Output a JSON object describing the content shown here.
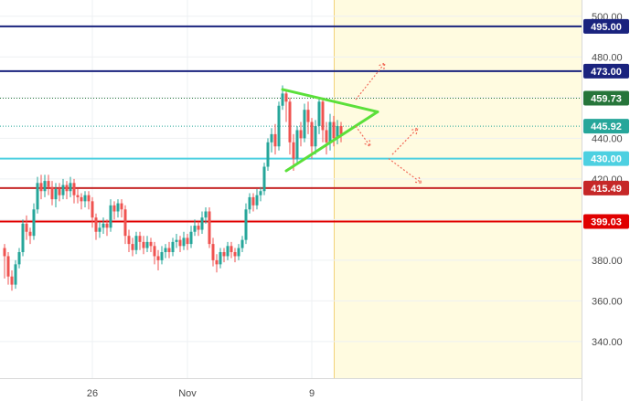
{
  "chart_data": {
    "type": "candlestick",
    "y_axis": {
      "position": "right",
      "range": [
        322,
        508
      ],
      "tick_labels": [
        "340.00",
        "360.00",
        "380.00",
        "420.00",
        "440.00",
        "480.00",
        "500.00"
      ],
      "tick_values": [
        340,
        360,
        380,
        420,
        440,
        480,
        500
      ]
    },
    "x_axis": {
      "tick_labels": [
        "26",
        "Nov",
        "9"
      ],
      "tick_index": [
        24,
        50,
        84
      ]
    },
    "grid": true,
    "forecast_zone_start_index": 90,
    "horizontal_levels": [
      {
        "value": 495.0,
        "label": "495.00",
        "color": "#1a237e",
        "style": "solid"
      },
      {
        "value": 473.0,
        "label": "473.00",
        "color": "#1a237e",
        "style": "solid"
      },
      {
        "value": 459.73,
        "label": "459.73",
        "color": "#26753a",
        "style": "dotted"
      },
      {
        "value": 445.92,
        "label": "445.92",
        "color": "#26a69a",
        "style": "dotted"
      },
      {
        "value": 430.0,
        "label": "430.00",
        "color": "#4dd0e1",
        "style": "solid"
      },
      {
        "value": 415.49,
        "label": "415.49",
        "color": "#c62828",
        "style": "solid"
      },
      {
        "value": 399.03,
        "label": "399.03",
        "color": "#e00000",
        "style": "solid"
      }
    ],
    "triangle": {
      "upper": [
        [
          76,
          464
        ],
        [
          102,
          453
        ]
      ],
      "lower": [
        [
          77,
          424
        ],
        [
          102,
          453
        ]
      ],
      "color": "#5be03a"
    },
    "projection_arrows": [
      {
        "from": [
          96,
          459
        ],
        "to": [
          104,
          477
        ]
      },
      {
        "from": [
          96,
          446
        ],
        "to": [
          100,
          436
        ]
      },
      {
        "from": [
          106,
          432
        ],
        "to": [
          113,
          445
        ]
      },
      {
        "from": [
          105,
          430
        ],
        "to": [
          114,
          418
        ]
      }
    ],
    "candles": [
      [
        386,
        382,
        388,
        371
      ],
      [
        382,
        372,
        384,
        368
      ],
      [
        372,
        368,
        375,
        365
      ],
      [
        368,
        378,
        380,
        366
      ],
      [
        378,
        384,
        386,
        376
      ],
      [
        384,
        398,
        400,
        382
      ],
      [
        398,
        394,
        402,
        390
      ],
      [
        394,
        392,
        396,
        388
      ],
      [
        392,
        405,
        408,
        390
      ],
      [
        405,
        418,
        421,
        403
      ],
      [
        418,
        414,
        422,
        410
      ],
      [
        414,
        419,
        422,
        411
      ],
      [
        419,
        416,
        422,
        412
      ],
      [
        416,
        410,
        419,
        407
      ],
      [
        410,
        415,
        418,
        406
      ],
      [
        415,
        412,
        418,
        409
      ],
      [
        412,
        417,
        420,
        410
      ],
      [
        417,
        414,
        419,
        410
      ],
      [
        414,
        418,
        421,
        411
      ],
      [
        418,
        412,
        420,
        408
      ],
      [
        412,
        411,
        415,
        408
      ],
      [
        411,
        409,
        413,
        405
      ],
      [
        409,
        412,
        414,
        406
      ],
      [
        412,
        409,
        414,
        405
      ],
      [
        409,
        401,
        411,
        396
      ],
      [
        401,
        394,
        403,
        390
      ],
      [
        394,
        396,
        399,
        391
      ],
      [
        396,
        398,
        401,
        393
      ],
      [
        398,
        396,
        400,
        392
      ],
      [
        396,
        407,
        410,
        394
      ],
      [
        407,
        404,
        409,
        400
      ],
      [
        404,
        408,
        410,
        401
      ],
      [
        408,
        405,
        410,
        401
      ],
      [
        405,
        392,
        407,
        388
      ],
      [
        392,
        388,
        395,
        384
      ],
      [
        388,
        385,
        391,
        382
      ],
      [
        385,
        392,
        394,
        383
      ],
      [
        392,
        389,
        394,
        385
      ],
      [
        389,
        386,
        392,
        383
      ],
      [
        386,
        389,
        392,
        384
      ],
      [
        389,
        387,
        391,
        384
      ],
      [
        387,
        382,
        389,
        378
      ],
      [
        382,
        380,
        385,
        375
      ],
      [
        380,
        384,
        387,
        378
      ],
      [
        384,
        386,
        388,
        381
      ],
      [
        386,
        384,
        389,
        381
      ],
      [
        384,
        389,
        391,
        382
      ],
      [
        389,
        390,
        393,
        386
      ],
      [
        390,
        387,
        392,
        384
      ],
      [
        387,
        391,
        394,
        385
      ],
      [
        391,
        388,
        393,
        385
      ],
      [
        388,
        394,
        397,
        386
      ],
      [
        394,
        397,
        400,
        392
      ],
      [
        397,
        395,
        399,
        392
      ],
      [
        395,
        401,
        404,
        393
      ],
      [
        401,
        404,
        406,
        398
      ],
      [
        404,
        388,
        406,
        386
      ],
      [
        388,
        380,
        391,
        377
      ],
      [
        380,
        378,
        383,
        374
      ],
      [
        378,
        384,
        386,
        376
      ],
      [
        384,
        382,
        386,
        379
      ],
      [
        382,
        387,
        389,
        380
      ],
      [
        387,
        384,
        389,
        381
      ],
      [
        384,
        382,
        386,
        379
      ],
      [
        382,
        386,
        388,
        380
      ],
      [
        386,
        390,
        392,
        384
      ],
      [
        390,
        405,
        408,
        388
      ],
      [
        405,
        411,
        413,
        403
      ],
      [
        411,
        407,
        413,
        404
      ],
      [
        407,
        412,
        415,
        405
      ],
      [
        412,
        414,
        416,
        409
      ],
      [
        414,
        426,
        428,
        412
      ],
      [
        426,
        438,
        440,
        424
      ],
      [
        438,
        442,
        445,
        433
      ],
      [
        442,
        436,
        447,
        432
      ],
      [
        436,
        456,
        458,
        434
      ],
      [
        456,
        462,
        466,
        454
      ],
      [
        462,
        458,
        464,
        448
      ],
      [
        458,
        438,
        460,
        432
      ],
      [
        438,
        430,
        442,
        424
      ],
      [
        430,
        444,
        446,
        428
      ],
      [
        444,
        440,
        448,
        436
      ],
      [
        440,
        454,
        457,
        438
      ],
      [
        454,
        448,
        458,
        442
      ],
      [
        448,
        436,
        450,
        430
      ],
      [
        436,
        446,
        449,
        432
      ],
      [
        446,
        458,
        460,
        442
      ],
      [
        458,
        444,
        460,
        438
      ],
      [
        444,
        438,
        448,
        432
      ],
      [
        438,
        448,
        452,
        434
      ],
      [
        448,
        440,
        451,
        436
      ],
      [
        440,
        446,
        449,
        437
      ],
      [
        446,
        442,
        448,
        438
      ]
    ]
  }
}
